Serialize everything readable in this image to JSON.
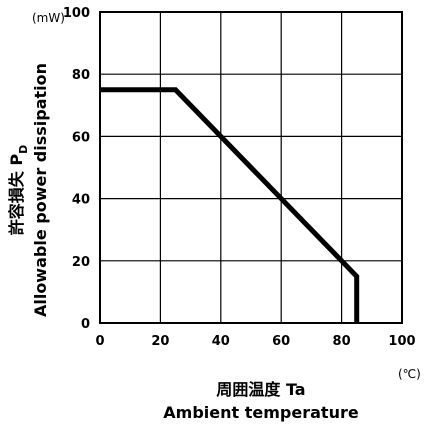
{
  "chart_data": {
    "type": "line",
    "xlabel_jp": "周囲温度 Ta",
    "xlabel_en": "Ambient temperature",
    "ylabel_jp": "許容損失 P",
    "ylabel_sub": "D",
    "ylabel_en": "Allowable power dissipation",
    "x_unit": "(℃)",
    "y_unit": "(mW)",
    "xlim": [
      0,
      100
    ],
    "ylim": [
      0,
      100
    ],
    "x_ticks": [
      "0",
      "20",
      "40",
      "60",
      "80",
      "100"
    ],
    "y_ticks": [
      "0",
      "20",
      "40",
      "60",
      "80",
      "100"
    ],
    "grid": true,
    "series": [
      {
        "x": [
          0,
          25,
          85,
          85
        ],
        "y": [
          75,
          75,
          15,
          0
        ]
      }
    ]
  }
}
